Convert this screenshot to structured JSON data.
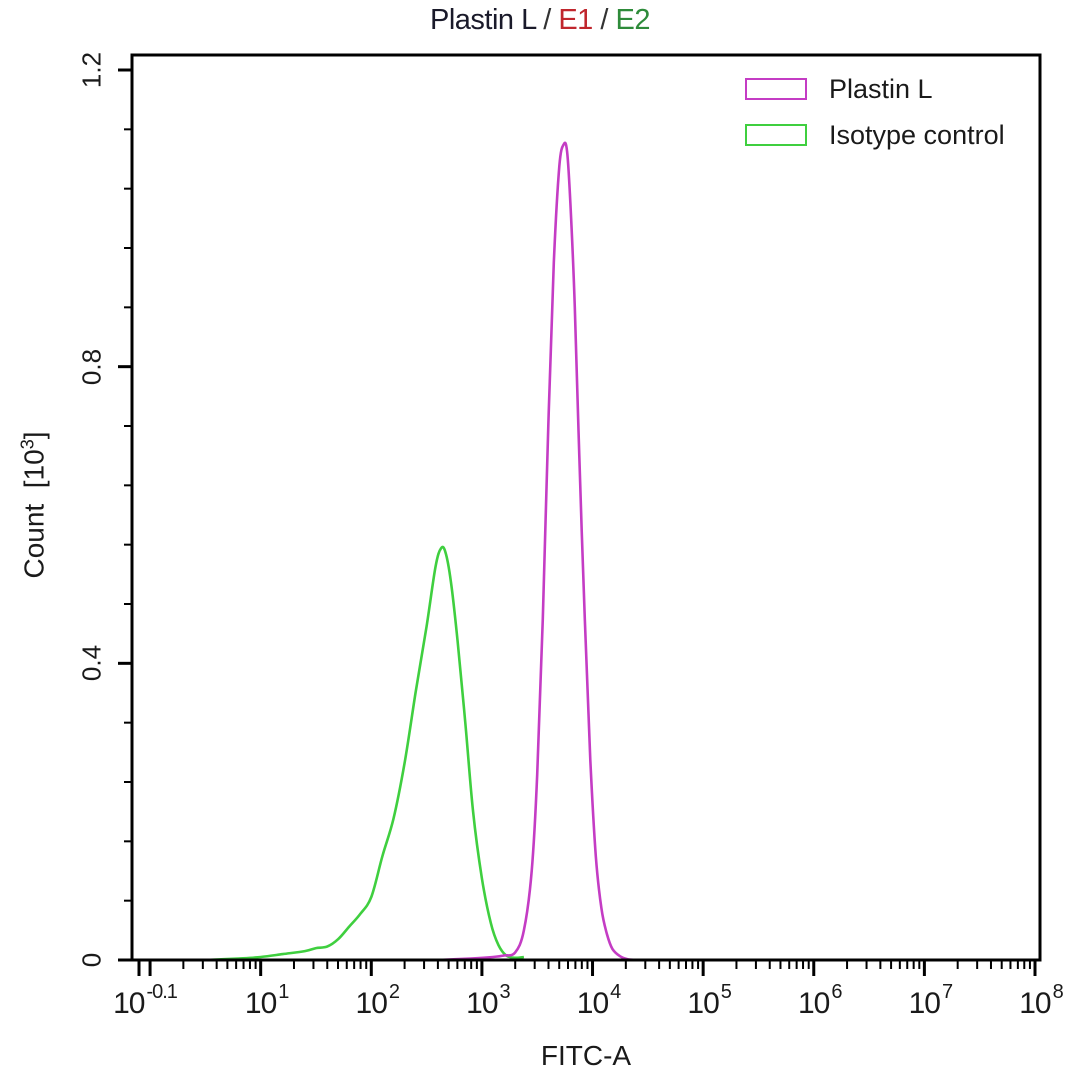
{
  "chart_data": {
    "type": "line",
    "title": "Plastin L / E1 / E2",
    "title_parts": [
      {
        "text": "Plastin L",
        "color": "#1a1a2a"
      },
      {
        "text": " / ",
        "color": "#333333"
      },
      {
        "text": "E1",
        "color": "#c0262d"
      },
      {
        "text": " / ",
        "color": "#333333"
      },
      {
        "text": "E2",
        "color": "#2e8b3a"
      }
    ],
    "xlabel": "FITC-A",
    "ylabel": "Count",
    "ylabel_unit_base": "10",
    "ylabel_unit_exp": "3",
    "x_scale": "log",
    "xlim_log10": [
      -0.1,
      8
    ],
    "ylim": [
      0,
      1.2
    ],
    "grid": false,
    "legend_position": "upper right",
    "x_ticks": [
      {
        "base": "10",
        "exp": "-0.1",
        "log10": -0.1
      },
      {
        "base": "10",
        "exp": "1",
        "log10": 1
      },
      {
        "base": "10",
        "exp": "2",
        "log10": 2
      },
      {
        "base": "10",
        "exp": "3",
        "log10": 3
      },
      {
        "base": "10",
        "exp": "4",
        "log10": 4
      },
      {
        "base": "10",
        "exp": "5",
        "log10": 5
      },
      {
        "base": "10",
        "exp": "6",
        "log10": 6
      },
      {
        "base": "10",
        "exp": "7",
        "log10": 7
      },
      {
        "base": "10",
        "exp": "8",
        "log10": 8
      }
    ],
    "y_ticks": [
      {
        "label": "0",
        "value": 0
      },
      {
        "label": "0.4",
        "value": 0.4
      },
      {
        "label": "0.8",
        "value": 0.8
      },
      {
        "label": "1.2",
        "value": 1.2
      }
    ],
    "series": [
      {
        "name": "Plastin L",
        "color": "#c43cc4",
        "x_log10": [
          2.6,
          2.9,
          3.1,
          3.2,
          3.3,
          3.38,
          3.45,
          3.5,
          3.55,
          3.6,
          3.65,
          3.7,
          3.74,
          3.77,
          3.8,
          3.84,
          3.88,
          3.93,
          3.98,
          4.03,
          4.08,
          4.13,
          4.18,
          4.25,
          4.32,
          4.4,
          4.5
        ],
        "values": [
          0.0,
          0.002,
          0.004,
          0.006,
          0.01,
          0.04,
          0.12,
          0.25,
          0.46,
          0.72,
          0.94,
          1.07,
          1.1,
          1.09,
          1.02,
          0.88,
          0.68,
          0.46,
          0.27,
          0.14,
          0.07,
          0.035,
          0.015,
          0.005,
          0.001,
          0.0,
          0.0
        ]
      },
      {
        "name": "Isotype control",
        "color": "#3fcf3f",
        "x_log10": [
          0.5,
          0.8,
          1.0,
          1.2,
          1.4,
          1.5,
          1.6,
          1.7,
          1.8,
          1.9,
          2.0,
          2.1,
          2.2,
          2.3,
          2.4,
          2.5,
          2.58,
          2.63,
          2.67,
          2.72,
          2.78,
          2.85,
          2.92,
          3.0,
          3.08,
          3.15,
          3.22,
          3.3,
          3.38
        ],
        "values": [
          0.0,
          0.002,
          0.004,
          0.008,
          0.012,
          0.016,
          0.018,
          0.028,
          0.045,
          0.062,
          0.085,
          0.14,
          0.19,
          0.265,
          0.36,
          0.45,
          0.53,
          0.555,
          0.55,
          0.51,
          0.43,
          0.32,
          0.2,
          0.11,
          0.05,
          0.02,
          0.006,
          0.003,
          0.004
        ]
      }
    ]
  },
  "legend": {
    "items": [
      {
        "label": "Plastin L",
        "color": "#c43cc4"
      },
      {
        "label": "Isotype control",
        "color": "#3fcf3f"
      }
    ]
  }
}
